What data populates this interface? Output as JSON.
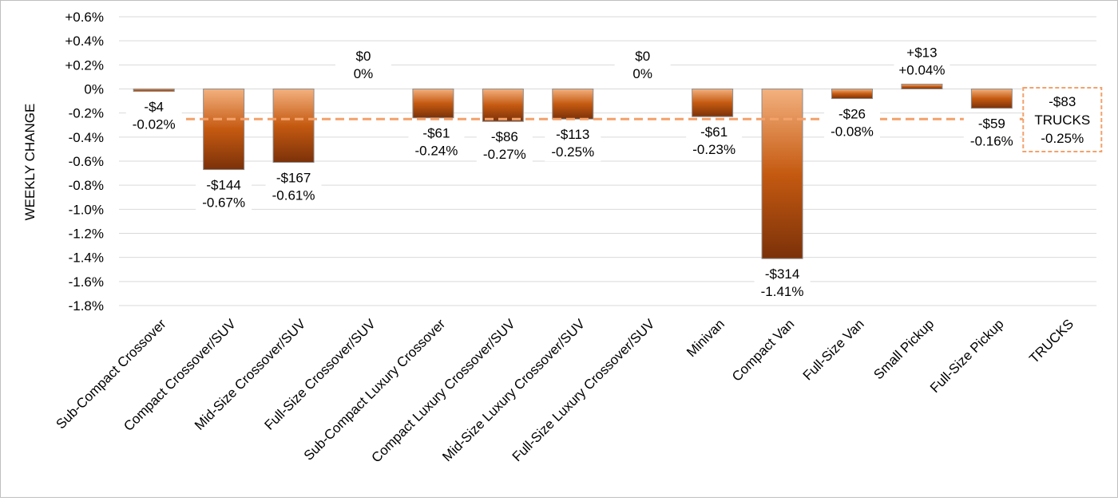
{
  "chart_data": {
    "type": "bar",
    "ylabel": "WEEKLY CHANGE",
    "ylim": [
      -1.8,
      0.6
    ],
    "yticks": [
      "+0.6%",
      "+0.4%",
      "+0.2%",
      "0%",
      "-0.2%",
      "-0.4%",
      "-0.6%",
      "-0.8%",
      "-1.0%",
      "-1.2%",
      "-1.4%",
      "-1.6%",
      "-1.8%"
    ],
    "ytick_values": [
      0.6,
      0.4,
      0.2,
      0,
      -0.2,
      -0.4,
      -0.6,
      -0.8,
      -1.0,
      -1.2,
      -1.4,
      -1.6,
      -1.8
    ],
    "grid": true,
    "categories": [
      "Sub-Compact Crossover",
      "Compact Crossover/SUV",
      "Mid-Size Crossover/SUV",
      "Full-Size Crossover/SUV",
      "Sub-Compact Luxury Crossover",
      "Compact Luxury Crossover/SUV",
      "Mid-Size Luxury Crossover/SUV",
      "Full-Size Luxury Crossover/SUV",
      "Minivan",
      "Compact Van",
      "Full-Size Van",
      "Small Pickup",
      "Full-Size Pickup",
      "TRUCKS"
    ],
    "values": [
      -0.02,
      -0.67,
      -0.61,
      0,
      -0.24,
      -0.27,
      -0.25,
      0,
      -0.23,
      -1.41,
      -0.08,
      0.04,
      -0.16,
      null
    ],
    "dollar_labels": [
      "-$4",
      "-$144",
      "-$167",
      "$0",
      "-$61",
      "-$86",
      "-$113",
      "$0",
      "-$61",
      "-$314",
      "-$26",
      "+$13",
      "-$59",
      "-$83"
    ],
    "percent_labels": [
      "-0.02%",
      "-0.67%",
      "-0.61%",
      "0%",
      "-0.24%",
      "-0.27%",
      "-0.25%",
      "0%",
      "-0.23%",
      "-1.41%",
      "-0.08%",
      "+0.04%",
      "-0.16%",
      "-0.25%"
    ],
    "reference_line": {
      "value": -0.25,
      "name": "TRUCKS",
      "dollar": "-$83",
      "percent": "-0.25%"
    },
    "colors": {
      "bar_light": "#f3b17f",
      "bar_mid": "#c55a11",
      "bar_dark": "#7b3109",
      "reference": "#f4a16a",
      "grid": "#d9d9d9"
    }
  }
}
